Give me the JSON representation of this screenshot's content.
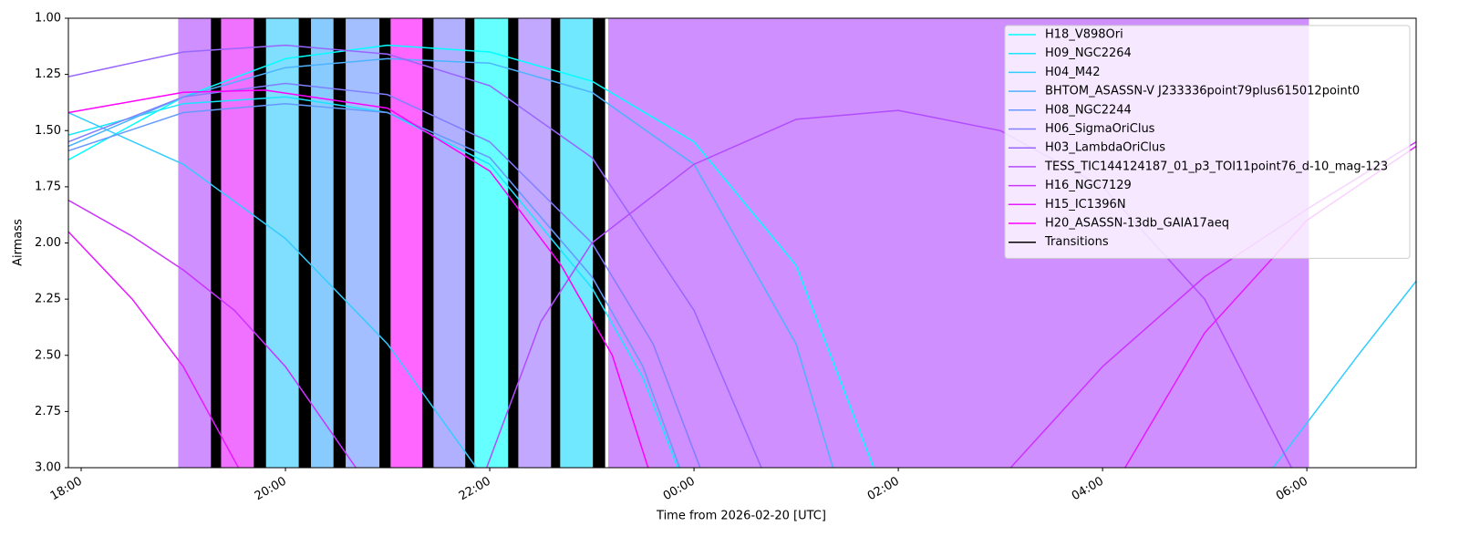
{
  "chart_data": {
    "type": "line",
    "xlabel": "Time from 2026-02-20 [UTC]",
    "ylabel": "Airmass",
    "xlim": [
      17.875,
      31.07
    ],
    "ylim": [
      1,
      3
    ],
    "y_inverted": true,
    "xticks": [
      {
        "value": 18,
        "label": "18:00"
      },
      {
        "value": 20,
        "label": "20:00"
      },
      {
        "value": 22,
        "label": "22:00"
      },
      {
        "value": 24,
        "label": "00:00"
      },
      {
        "value": 26,
        "label": "02:00"
      },
      {
        "value": 28,
        "label": "04:00"
      },
      {
        "value": 30,
        "label": "06:00"
      }
    ],
    "yticks": [
      {
        "value": 1,
        "label": "1.00"
      },
      {
        "value": 1.25,
        "label": "1.25"
      },
      {
        "value": 1.5,
        "label": "1.50"
      },
      {
        "value": 1.75,
        "label": "1.75"
      },
      {
        "value": 2,
        "label": "2.00"
      },
      {
        "value": 2.25,
        "label": "2.25"
      },
      {
        "value": 2.5,
        "label": "2.50"
      },
      {
        "value": 2.75,
        "label": "2.75"
      },
      {
        "value": 3,
        "label": "3.00"
      }
    ],
    "legend": "upper right",
    "spans": [
      {
        "start": 18.95,
        "end": 19.27,
        "color": "#cf8fff"
      },
      {
        "start": 19.37,
        "end": 19.69,
        "color": "#f070ff"
      },
      {
        "start": 19.81,
        "end": 20.13,
        "color": "#80deff"
      },
      {
        "start": 20.25,
        "end": 20.47,
        "color": "#88ccff"
      },
      {
        "start": 20.59,
        "end": 20.92,
        "color": "#a3bfff"
      },
      {
        "start": 21.03,
        "end": 21.34,
        "color": "#ff66ff"
      },
      {
        "start": 21.45,
        "end": 21.76,
        "color": "#b0b0ff"
      },
      {
        "start": 21.85,
        "end": 22.18,
        "color": "#66ffff"
      },
      {
        "start": 22.28,
        "end": 22.6,
        "color": "#c2a8ff"
      },
      {
        "start": 22.69,
        "end": 23.01,
        "color": "#70e8ff"
      },
      {
        "start": 23.16,
        "end": 30.02,
        "color": "#cf8fff"
      }
    ],
    "transitions": {
      "name": "Transitions",
      "color": "#000000",
      "spans": [
        [
          19.27,
          19.37
        ],
        [
          19.69,
          19.81
        ],
        [
          20.13,
          20.25
        ],
        [
          20.47,
          20.59
        ],
        [
          20.92,
          21.03
        ],
        [
          21.34,
          21.45
        ],
        [
          21.76,
          21.85
        ],
        [
          22.18,
          22.28
        ],
        [
          22.6,
          22.69
        ],
        [
          23.01,
          23.13
        ]
      ]
    },
    "series": [
      {
        "name": "H18_V898Ori",
        "color": "#00ffff",
        "x": [
          17.875,
          19,
          20,
          21,
          22,
          23,
          24,
          25,
          25.76
        ],
        "values": [
          1.63,
          1.35,
          1.18,
          1.12,
          1.15,
          1.28,
          1.55,
          2.1,
          3.0
        ]
      },
      {
        "name": "H09_NGC2264",
        "color": "#1ae5ff",
        "x": [
          17.875,
          19,
          20,
          21,
          22,
          23,
          23.5,
          23.84
        ],
        "values": [
          1.52,
          1.38,
          1.35,
          1.42,
          1.65,
          2.2,
          2.6,
          3.0
        ]
      },
      {
        "name": "H04_M42",
        "color": "#33ccff",
        "x": [
          17.875,
          19,
          20,
          21,
          21.87,
          null,
          29.67,
          30.5,
          31.07
        ],
        "values": [
          1.42,
          1.65,
          1.98,
          2.45,
          3.0,
          null,
          3.0,
          2.5,
          2.17
        ]
      },
      {
        "name": "BHTOM_ASASSN-V J233336point79plus615012point0",
        "color": "#4db2ff",
        "x": [
          17.875,
          19,
          20,
          21,
          22,
          23,
          24,
          25,
          25.36
        ],
        "values": [
          1.57,
          1.35,
          1.22,
          1.18,
          1.2,
          1.33,
          1.65,
          2.45,
          3.0
        ]
      },
      {
        "name": "H08_NGC2244",
        "color": "#6699ff",
        "x": [
          17.875,
          19,
          20,
          21,
          22,
          23,
          23.5,
          23.86
        ],
        "values": [
          1.59,
          1.42,
          1.38,
          1.42,
          1.62,
          2.15,
          2.55,
          3.0
        ]
      },
      {
        "name": "H06_SigmaOriClus",
        "color": "#807fff",
        "x": [
          17.875,
          19,
          20,
          21,
          22,
          23,
          23.6,
          24.06
        ],
        "values": [
          1.55,
          1.35,
          1.29,
          1.34,
          1.55,
          2.0,
          2.45,
          3.0
        ]
      },
      {
        "name": "H03_LambdaOriClus",
        "color": "#9966ff",
        "x": [
          17.875,
          19,
          20,
          21,
          22,
          23,
          24,
          24.66
        ],
        "values": [
          1.26,
          1.15,
          1.12,
          1.16,
          1.3,
          1.62,
          2.3,
          3.0
        ]
      },
      {
        "name": "TESS_TIC144124187_01_p3_TOI11point76_d-10_mag-123",
        "color": "#b24cff",
        "x": [
          21.97,
          22.5,
          23,
          24,
          25,
          26,
          27,
          28,
          29,
          29.85
        ],
        "values": [
          3.0,
          2.35,
          2.0,
          1.65,
          1.45,
          1.41,
          1.5,
          1.75,
          2.25,
          3.0
        ]
      },
      {
        "name": "H16_NGC7129",
        "color": "#cc33ff",
        "x": [
          17.875,
          18.5,
          19,
          19.5,
          20,
          20.69,
          null,
          27.1,
          28,
          29,
          30,
          31.07
        ],
        "values": [
          1.81,
          1.97,
          2.12,
          2.3,
          2.55,
          3.0,
          null,
          3.0,
          2.55,
          2.15,
          1.85,
          1.55
        ]
      },
      {
        "name": "H15_IC1396N",
        "color": "#e619ff",
        "x": [
          17.875,
          18.5,
          19,
          19.54,
          null,
          28.22,
          29,
          30,
          31.07
        ],
        "values": [
          1.95,
          2.25,
          2.55,
          3.0,
          null,
          3.0,
          2.4,
          1.9,
          1.57
        ]
      },
      {
        "name": "H20_ASASSN-13db_GAIA17aeq",
        "color": "#ff00ff",
        "x": [
          17.875,
          19,
          19.8,
          21,
          22,
          22.7,
          23.2,
          23.55
        ],
        "values": [
          1.42,
          1.33,
          1.32,
          1.4,
          1.68,
          2.1,
          2.5,
          3.0
        ]
      }
    ]
  }
}
